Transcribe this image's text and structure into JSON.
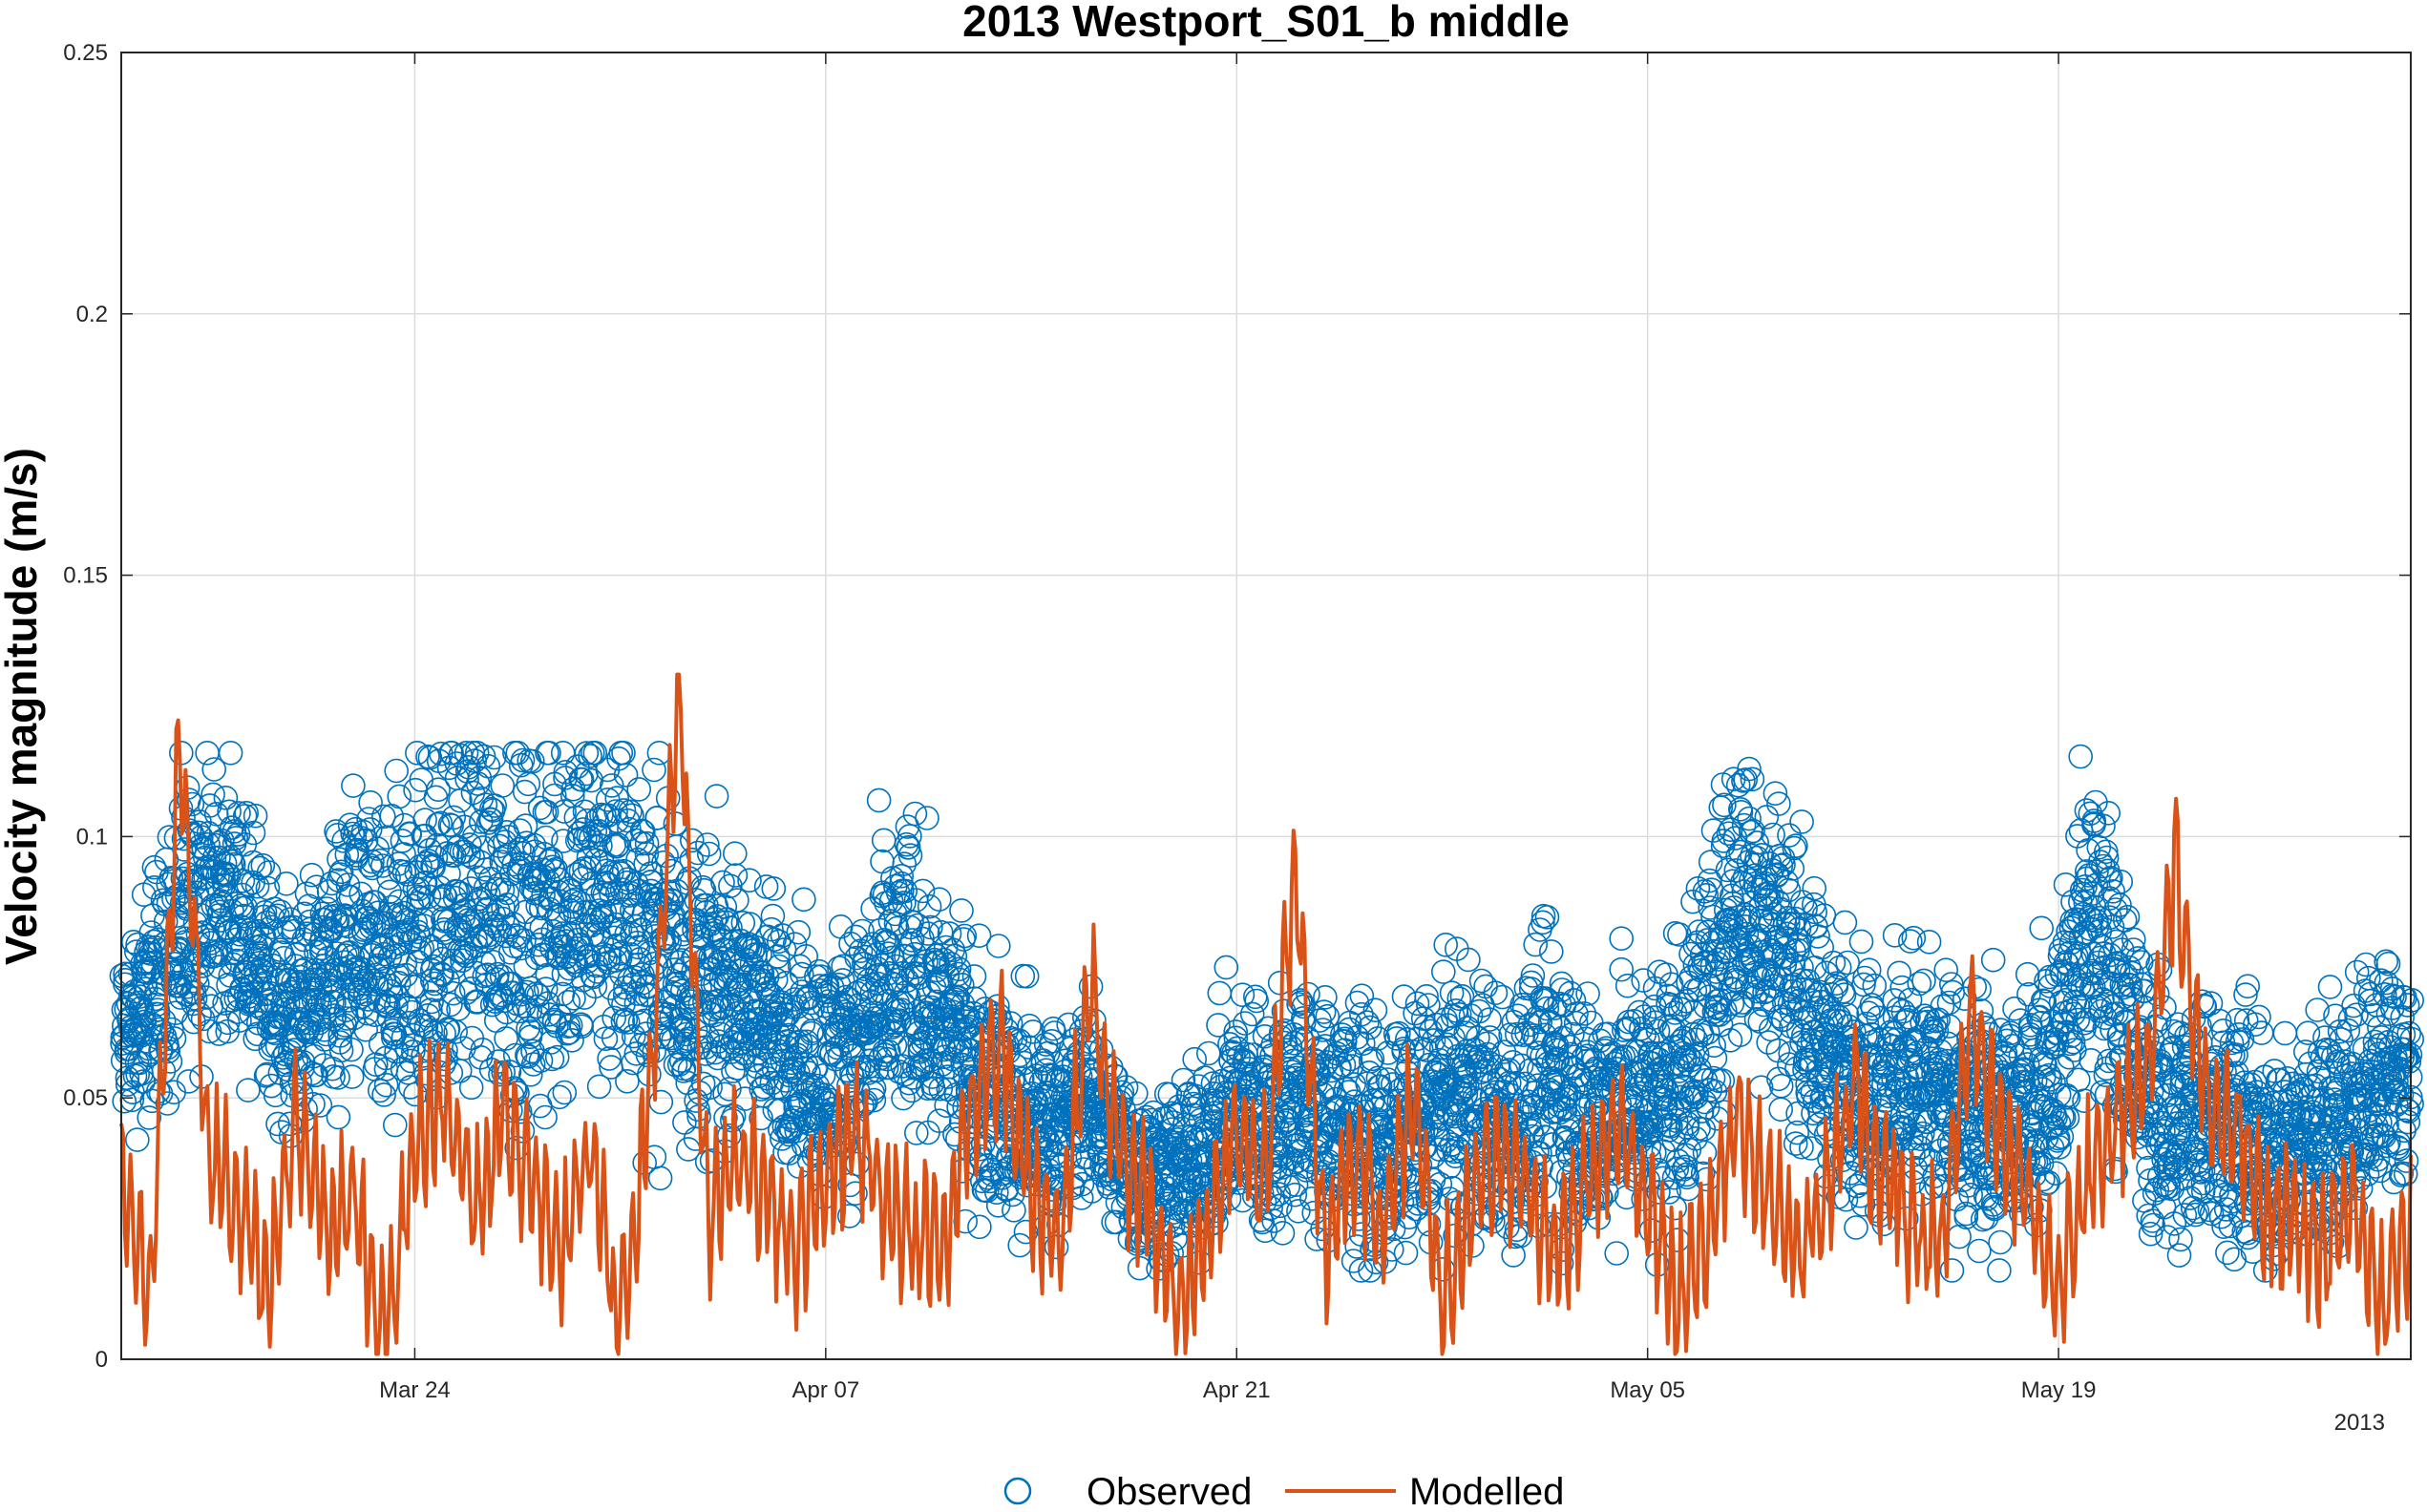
{
  "chart_data": {
    "type": "scatter",
    "title": "2013 Westport_S01_b middle",
    "xlabel": "",
    "ylabel": "Velocity magnitude (m/s)",
    "year_label": "2013",
    "x_range": [
      "2013-03-14",
      "2013-05-31"
    ],
    "ylim": [
      0,
      0.25
    ],
    "y_ticks": [
      {
        "value": 0,
        "label": "0"
      },
      {
        "value": 0.05,
        "label": "0.05"
      },
      {
        "value": 0.1,
        "label": "0.1"
      },
      {
        "value": 0.15,
        "label": "0.15"
      },
      {
        "value": 0.2,
        "label": "0.2"
      },
      {
        "value": 0.25,
        "label": "0.25"
      }
    ],
    "x_ticks": [
      {
        "date": "2013-03-24",
        "label": "Mar 24"
      },
      {
        "date": "2013-04-07",
        "label": "Apr 07"
      },
      {
        "date": "2013-04-21",
        "label": "Apr 21"
      },
      {
        "date": "2013-05-05",
        "label": "May 05"
      },
      {
        "date": "2013-05-19",
        "label": "May 19"
      }
    ],
    "grid": true,
    "legend_position": "bottom",
    "series": [
      {
        "name": "Observed",
        "type": "scatter",
        "marker": "circle",
        "color": "#0072BD",
        "x": [
          "2013-03-14",
          "2013-03-15",
          "2013-03-16",
          "2013-03-17",
          "2013-03-18",
          "2013-03-19",
          "2013-03-20",
          "2013-03-21",
          "2013-03-22",
          "2013-03-23",
          "2013-03-24",
          "2013-03-25",
          "2013-03-26",
          "2013-03-27",
          "2013-03-28",
          "2013-03-29",
          "2013-03-30",
          "2013-03-31",
          "2013-04-01",
          "2013-04-02",
          "2013-04-03",
          "2013-04-04",
          "2013-04-05",
          "2013-04-06",
          "2013-04-07",
          "2013-04-08",
          "2013-04-09",
          "2013-04-10",
          "2013-04-11",
          "2013-04-12",
          "2013-04-13",
          "2013-04-14",
          "2013-04-15",
          "2013-04-16",
          "2013-04-17",
          "2013-04-18",
          "2013-04-19",
          "2013-04-20",
          "2013-04-21",
          "2013-04-22",
          "2013-04-23",
          "2013-04-24",
          "2013-04-25",
          "2013-04-26",
          "2013-04-27",
          "2013-04-28",
          "2013-04-29",
          "2013-04-30",
          "2013-05-01",
          "2013-05-02",
          "2013-05-03",
          "2013-05-04",
          "2013-05-05",
          "2013-05-06",
          "2013-05-07",
          "2013-05-08",
          "2013-05-09",
          "2013-05-10",
          "2013-05-11",
          "2013-05-12",
          "2013-05-13",
          "2013-05-14",
          "2013-05-15",
          "2013-05-16",
          "2013-05-17",
          "2013-05-18",
          "2013-05-19",
          "2013-05-20",
          "2013-05-21",
          "2013-05-22",
          "2013-05-23",
          "2013-05-24",
          "2013-05-25",
          "2013-05-26",
          "2013-05-27",
          "2013-05-28",
          "2013-05-29",
          "2013-05-30",
          "2013-05-31"
        ],
        "y": [
          0.06,
          0.07,
          0.08,
          0.09,
          0.085,
          0.07,
          0.065,
          0.075,
          0.08,
          0.07,
          0.08,
          0.085,
          0.09,
          0.085,
          0.08,
          0.085,
          0.09,
          0.085,
          0.08,
          0.075,
          0.07,
          0.07,
          0.065,
          0.06,
          0.055,
          0.06,
          0.07,
          0.075,
          0.065,
          0.055,
          0.05,
          0.045,
          0.045,
          0.05,
          0.04,
          0.035,
          0.035,
          0.04,
          0.05,
          0.045,
          0.05,
          0.045,
          0.045,
          0.04,
          0.045,
          0.05,
          0.05,
          0.045,
          0.05,
          0.055,
          0.045,
          0.05,
          0.05,
          0.055,
          0.065,
          0.09,
          0.085,
          0.075,
          0.06,
          0.055,
          0.05,
          0.055,
          0.05,
          0.045,
          0.045,
          0.05,
          0.06,
          0.085,
          0.07,
          0.05,
          0.045,
          0.05,
          0.045,
          0.04,
          0.04,
          0.045,
          0.05,
          0.055,
          0.055
        ],
        "spread": [
          0.015,
          0.02,
          0.025,
          0.02,
          0.02,
          0.02,
          0.02,
          0.02,
          0.025,
          0.025,
          0.03,
          0.03,
          0.03,
          0.03,
          0.03,
          0.03,
          0.03,
          0.03,
          0.03,
          0.025,
          0.025,
          0.02,
          0.02,
          0.02,
          0.02,
          0.02,
          0.025,
          0.025,
          0.02,
          0.02,
          0.02,
          0.02,
          0.015,
          0.015,
          0.015,
          0.015,
          0.015,
          0.015,
          0.02,
          0.02,
          0.02,
          0.02,
          0.02,
          0.02,
          0.02,
          0.02,
          0.02,
          0.02,
          0.025,
          0.025,
          0.02,
          0.02,
          0.02,
          0.025,
          0.025,
          0.025,
          0.025,
          0.025,
          0.02,
          0.02,
          0.02,
          0.02,
          0.02,
          0.02,
          0.02,
          0.02,
          0.02,
          0.025,
          0.025,
          0.02,
          0.02,
          0.02,
          0.02,
          0.02,
          0.015,
          0.02,
          0.02,
          0.02,
          0.02
        ]
      },
      {
        "name": "Modelled",
        "type": "line",
        "color": "#D95319",
        "x": [
          "2013-03-14",
          "2013-03-15",
          "2013-03-16",
          "2013-03-17",
          "2013-03-18",
          "2013-03-19",
          "2013-03-20",
          "2013-03-21",
          "2013-03-22",
          "2013-03-23",
          "2013-03-24",
          "2013-03-25",
          "2013-03-26",
          "2013-03-27",
          "2013-03-28",
          "2013-03-29",
          "2013-03-30",
          "2013-03-31",
          "2013-04-01",
          "2013-04-02",
          "2013-04-03",
          "2013-04-04",
          "2013-04-05",
          "2013-04-06",
          "2013-04-07",
          "2013-04-08",
          "2013-04-09",
          "2013-04-10",
          "2013-04-11",
          "2013-04-12",
          "2013-04-13",
          "2013-04-14",
          "2013-04-15",
          "2013-04-16",
          "2013-04-17",
          "2013-04-18",
          "2013-04-19",
          "2013-04-20",
          "2013-04-21",
          "2013-04-22",
          "2013-04-23",
          "2013-04-24",
          "2013-04-25",
          "2013-04-26",
          "2013-04-27",
          "2013-04-28",
          "2013-04-29",
          "2013-04-30",
          "2013-05-01",
          "2013-05-02",
          "2013-05-03",
          "2013-05-04",
          "2013-05-05",
          "2013-05-06",
          "2013-05-07",
          "2013-05-08",
          "2013-05-09",
          "2013-05-10",
          "2013-05-11",
          "2013-05-12",
          "2013-05-13",
          "2013-05-14",
          "2013-05-15",
          "2013-05-16",
          "2013-05-17",
          "2013-05-18",
          "2013-05-19",
          "2013-05-20",
          "2013-05-21",
          "2013-05-22",
          "2013-05-23",
          "2013-05-24",
          "2013-05-25",
          "2013-05-26",
          "2013-05-27",
          "2013-05-28",
          "2013-05-29",
          "2013-05-30",
          "2013-05-31"
        ],
        "y": [
          0.035,
          0.012,
          0.12,
          0.04,
          0.03,
          0.015,
          0.045,
          0.025,
          0.03,
          0.002,
          0.04,
          0.05,
          0.03,
          0.045,
          0.035,
          0.02,
          0.04,
          0.005,
          0.05,
          0.131,
          0.025,
          0.04,
          0.03,
          0.02,
          0.035,
          0.045,
          0.03,
          0.025,
          0.02,
          0.05,
          0.06,
          0.03,
          0.025,
          0.07,
          0.04,
          0.03,
          0.01,
          0.025,
          0.045,
          0.035,
          0.093,
          0.02,
          0.04,
          0.025,
          0.05,
          0.01,
          0.03,
          0.04,
          0.03,
          0.02,
          0.035,
          0.045,
          0.03,
          0.01,
          0.025,
          0.045,
          0.035,
          0.02,
          0.03,
          0.05,
          0.035,
          0.025,
          0.02,
          0.064,
          0.045,
          0.03,
          0.015,
          0.035,
          0.045,
          0.055,
          0.093,
          0.05,
          0.045,
          0.03,
          0.025,
          0.02,
          0.03,
          0.01,
          0.025
        ]
      }
    ]
  }
}
